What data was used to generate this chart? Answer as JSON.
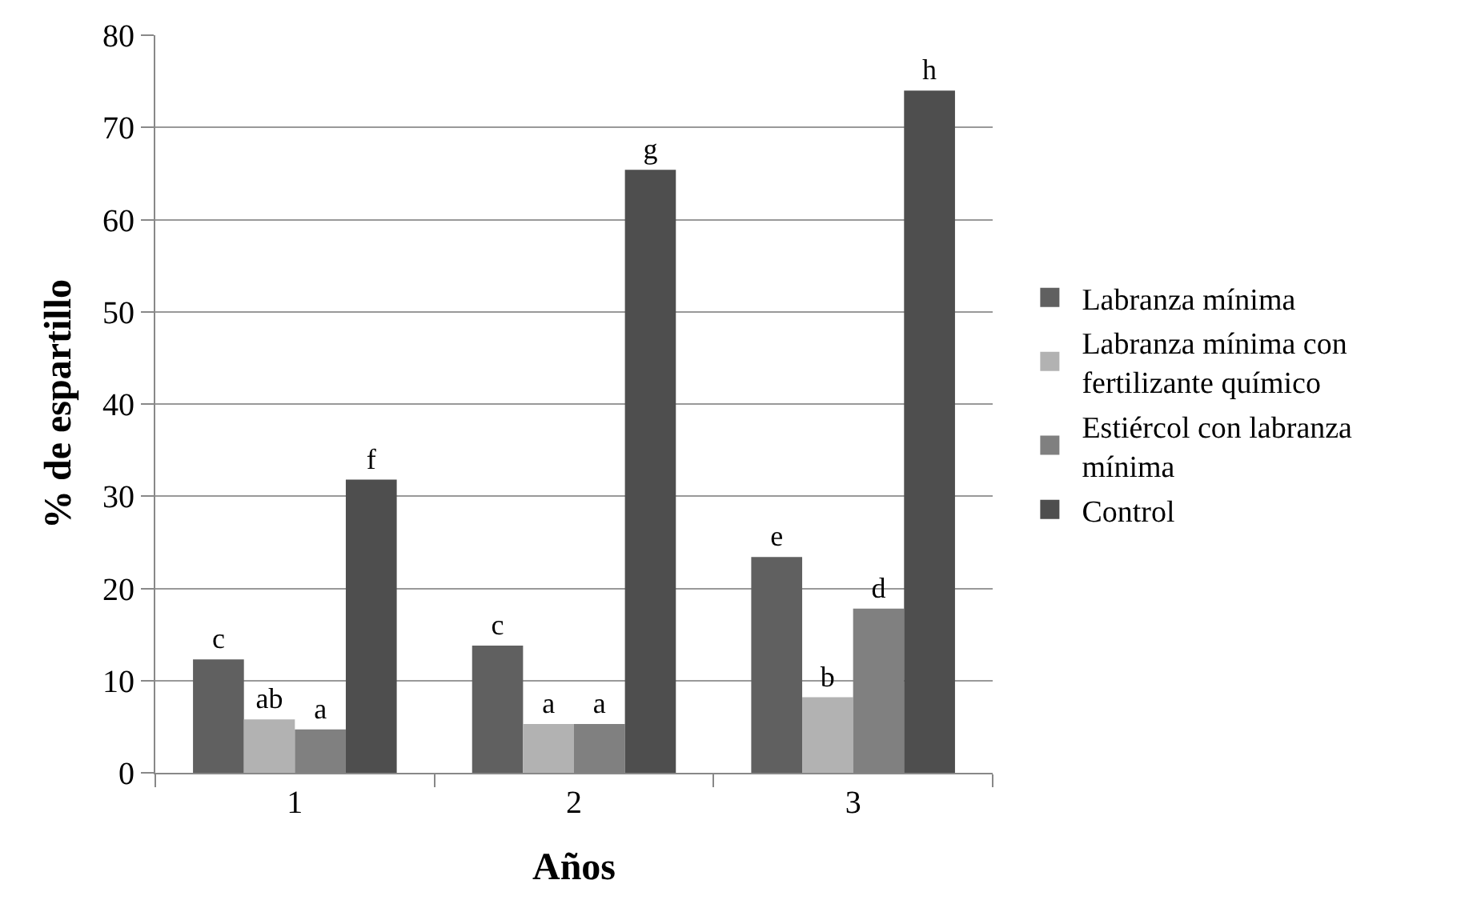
{
  "chart_data": {
    "type": "bar",
    "xlabel": "Años",
    "ylabel": "% de espartillo",
    "categories": [
      "1",
      "2",
      "3"
    ],
    "series": [
      {
        "name": "Labranza mínima",
        "color": "#606060",
        "values": [
          12.3,
          13.8,
          23.4
        ],
        "value_labels": [
          "c",
          "c",
          "e"
        ]
      },
      {
        "name": "Labranza mínima con fertilizante químico",
        "color": "#b2b2b2",
        "values": [
          5.8,
          5.3,
          8.2
        ],
        "value_labels": [
          "ab",
          "a",
          "b"
        ]
      },
      {
        "name": "Estiércol con labranza mínima",
        "color": "#808080",
        "values": [
          4.7,
          5.3,
          17.8
        ],
        "value_labels": [
          "a",
          "a",
          "d"
        ]
      },
      {
        "name": "Control",
        "color": "#4e4e4e",
        "values": [
          31.8,
          65.4,
          74.0
        ],
        "value_labels": [
          "f",
          "g",
          "h"
        ]
      }
    ],
    "ylim": [
      0,
      80
    ],
    "yticks": [
      0,
      10,
      20,
      30,
      40,
      50,
      60,
      70,
      80
    ],
    "grid": "y",
    "legend": "right"
  }
}
